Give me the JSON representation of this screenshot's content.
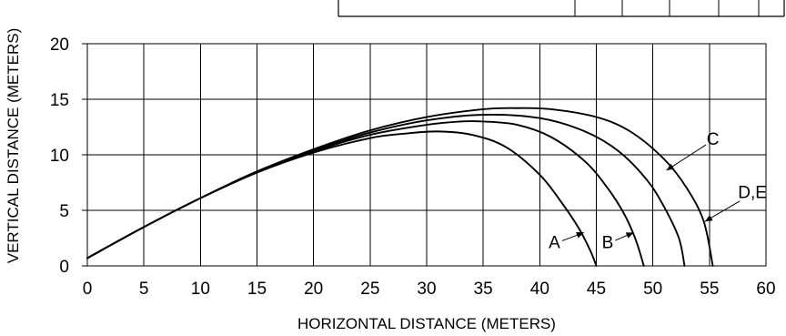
{
  "chart_data": {
    "type": "line",
    "title": "",
    "xlabel": "HORIZONTAL DISTANCE (METERS)",
    "ylabel": "VERTICAL DISTANCE (METERS)",
    "xlim": [
      0,
      60
    ],
    "ylim": [
      0,
      20
    ],
    "xticks": [
      "0",
      "5",
      "10",
      "15",
      "20",
      "25",
      "30",
      "35",
      "40",
      "45",
      "50",
      "55",
      "60"
    ],
    "yticks": [
      "0",
      "5",
      "10",
      "15",
      "20"
    ],
    "grid": true,
    "series": [
      {
        "name": "A",
        "x": [
          0,
          5,
          10,
          15,
          20,
          25,
          28,
          31,
          34,
          37,
          40,
          42,
          43.5,
          44.5,
          45
        ],
        "y": [
          0.7,
          3.5,
          6.1,
          8.4,
          10.2,
          11.5,
          11.9,
          12.1,
          11.8,
          10.7,
          8.2,
          5.6,
          3.3,
          1.3,
          0
        ]
      },
      {
        "name": "B",
        "x": [
          0,
          5,
          10,
          15,
          20,
          25,
          30,
          33,
          35,
          38,
          41,
          44,
          46,
          47.5,
          48.5,
          49.2
        ],
        "y": [
          0.7,
          3.5,
          6.1,
          8.4,
          10.3,
          11.8,
          12.7,
          13.0,
          13.0,
          12.7,
          11.6,
          9.4,
          7.0,
          4.6,
          2.3,
          0
        ]
      },
      {
        "name": "C",
        "x": [
          0,
          5,
          10,
          15,
          20,
          25,
          30,
          35,
          40,
          44,
          47,
          49.5,
          51,
          52.3,
          52.8
        ],
        "y": [
          0.7,
          3.5,
          6.1,
          8.5,
          10.4,
          12.0,
          13.1,
          13.6,
          13.3,
          12.1,
          10.3,
          7.7,
          5.3,
          2.5,
          0
        ]
      },
      {
        "name": "D,E",
        "x": [
          0,
          5,
          10,
          15,
          20,
          25,
          30,
          35,
          38,
          41,
          45,
          48,
          51,
          53,
          54.5,
          55.3
        ],
        "y": [
          0.7,
          3.5,
          6.1,
          8.5,
          10.5,
          12.2,
          13.4,
          14.1,
          14.2,
          14.1,
          13.4,
          12.1,
          9.6,
          7.0,
          4.0,
          0
        ]
      }
    ],
    "curve_labels": [
      {
        "text": "A",
        "label_x": 41.3,
        "label_y": 2.0,
        "point_x": 43.9,
        "point_y": 3.0
      },
      {
        "text": "B",
        "label_x": 46.0,
        "label_y": 2.0,
        "point_x": 48.3,
        "point_y": 3.0
      },
      {
        "text": "C",
        "label_x": 55.3,
        "label_y": 11.3,
        "point_x": 51.2,
        "point_y": 8.6
      },
      {
        "text": "D,E",
        "label_x": 58.8,
        "label_y": 6.5,
        "point_x": 54.6,
        "point_y": 4.0
      }
    ]
  }
}
